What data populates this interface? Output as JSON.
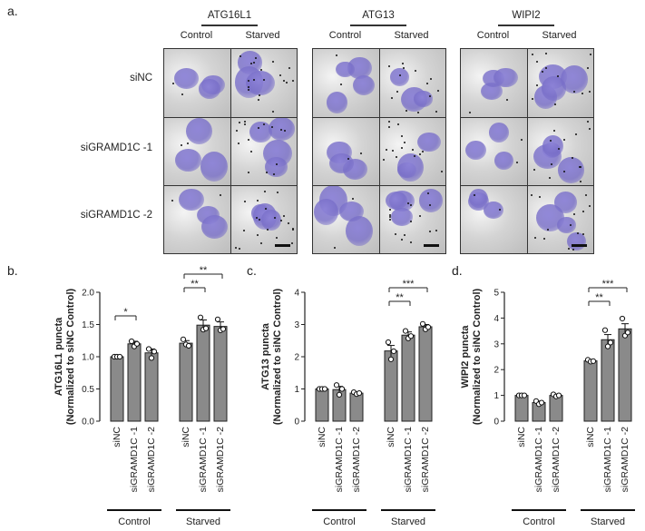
{
  "panel_a": {
    "letter": "a.",
    "columns": [
      "ATG16L1",
      "ATG13",
      "WIPI2"
    ],
    "conditions": [
      "Control",
      "Starved"
    ],
    "rows": [
      "siNC",
      "siGRAMD1C -1",
      "siGRAMD1C -2"
    ]
  },
  "chart_data": [
    {
      "type": "bar",
      "panel": "b.",
      "ylabel": [
        "ATG16L1 puncta",
        "(Normalized to siNC Control)"
      ],
      "ylim": [
        0,
        2.0
      ],
      "yticks": [
        "0.0",
        "0.5",
        "1.0",
        "1.5",
        "2.0"
      ],
      "categories": [
        "siNC",
        "siGRAMD1C -1",
        "siGRAMD1C -2",
        "siNC",
        "siGRAMD1C -1",
        "siGRAMD1C -2"
      ],
      "groups": [
        "Control",
        "Starved"
      ],
      "values": [
        1.0,
        1.2,
        1.06,
        1.21,
        1.49,
        1.47
      ],
      "errors": [
        0.01,
        0.04,
        0.06,
        0.04,
        0.08,
        0.07
      ],
      "points": [
        [
          1.0,
          1.0,
          1.0
        ],
        [
          1.24,
          1.16,
          1.2
        ],
        [
          1.12,
          0.98,
          1.08
        ],
        [
          1.27,
          1.19,
          1.17
        ],
        [
          1.61,
          1.42,
          1.44
        ],
        [
          1.58,
          1.41,
          1.43
        ]
      ],
      "significance": [
        {
          "from": 0,
          "to": 1,
          "label": "*"
        },
        {
          "from": 3,
          "to": 4,
          "label": "**"
        },
        {
          "from": 3,
          "to": 5,
          "label": "**"
        }
      ]
    },
    {
      "type": "bar",
      "panel": "c.",
      "ylabel": [
        "ATG13 puncta",
        "(Normalized to siNC Control)"
      ],
      "ylim": [
        0,
        4
      ],
      "yticks": [
        "0",
        "1",
        "2",
        "3",
        "4"
      ],
      "categories": [
        "siNC",
        "siGRAMD1C -1",
        "siGRAMD1C -2",
        "siNC",
        "siGRAMD1C -1",
        "siGRAMD1C -2"
      ],
      "groups": [
        "Control",
        "Starved"
      ],
      "values": [
        1.0,
        0.98,
        0.87,
        2.18,
        2.67,
        2.93
      ],
      "errors": [
        0.02,
        0.1,
        0.03,
        0.17,
        0.1,
        0.07
      ],
      "points": [
        [
          1.0,
          1.0,
          1.0
        ],
        [
          1.12,
          0.82,
          1.0
        ],
        [
          0.9,
          0.84,
          0.87
        ],
        [
          2.45,
          1.92,
          2.17
        ],
        [
          2.8,
          2.57,
          2.64
        ],
        [
          3.02,
          2.85,
          2.92
        ]
      ],
      "significance": [
        {
          "from": 3,
          "to": 4,
          "label": "**"
        },
        {
          "from": 3,
          "to": 5,
          "label": "***"
        }
      ]
    },
    {
      "type": "bar",
      "panel": "d.",
      "ylabel": [
        "WIPI2 puncta",
        "(Normalized to siNC Control)"
      ],
      "ylim": [
        0,
        5
      ],
      "yticks": [
        "0",
        "1",
        "2",
        "3",
        "4",
        "5"
      ],
      "categories": [
        "siNC",
        "siGRAMD1C -1",
        "siGRAMD1C -2",
        "siNC",
        "siGRAMD1C -1",
        "siGRAMD1C -2"
      ],
      "groups": [
        "Control",
        "Starved"
      ],
      "values": [
        1.0,
        0.72,
        1.0,
        2.34,
        3.16,
        3.58
      ],
      "errors": [
        0.02,
        0.06,
        0.04,
        0.04,
        0.2,
        0.2
      ],
      "points": [
        [
          1.0,
          1.0,
          1.0
        ],
        [
          0.78,
          0.66,
          0.72
        ],
        [
          1.04,
          0.96,
          1.0
        ],
        [
          2.38,
          2.31,
          2.33
        ],
        [
          3.53,
          2.9,
          3.05
        ],
        [
          3.98,
          3.32,
          3.44
        ]
      ],
      "significance": [
        {
          "from": 3,
          "to": 4,
          "label": "**"
        },
        {
          "from": 3,
          "to": 5,
          "label": "***"
        }
      ]
    }
  ]
}
